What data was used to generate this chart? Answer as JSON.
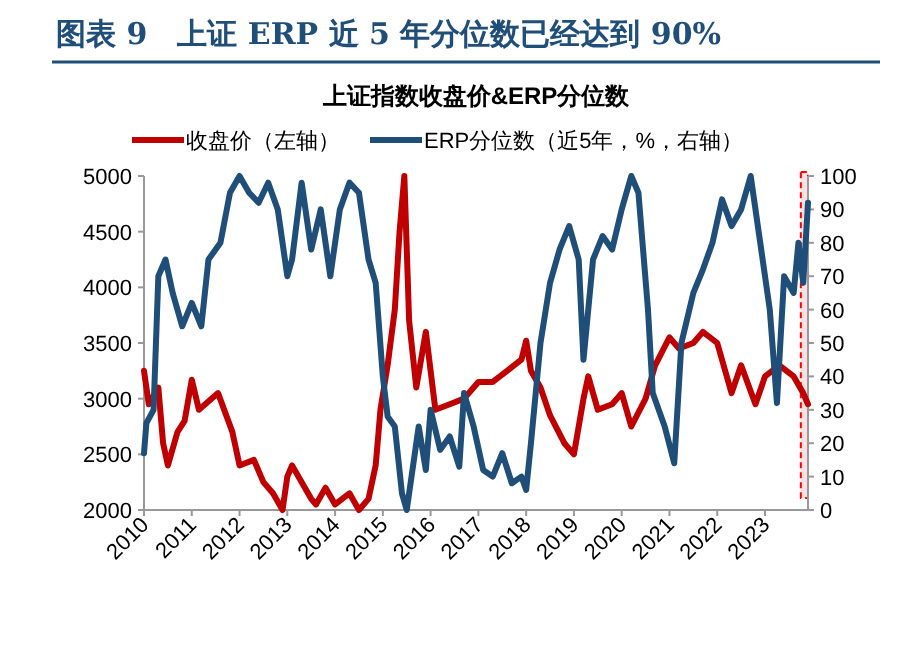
{
  "chart_data": {
    "type": "line",
    "title": "图表 9　上证 ERP 近 5 年分位数已经达到 90%",
    "subtitle": "上证指数收盘价&ERP分位数",
    "xlim": [
      2010,
      2023.9
    ],
    "xticks": [
      2010,
      2011,
      2012,
      2013,
      2014,
      2015,
      2016,
      2017,
      2018,
      2019,
      2020,
      2021,
      2022,
      2023
    ],
    "ylim": [
      2000,
      5000
    ],
    "yticks": [
      2000,
      2500,
      3000,
      3500,
      4000,
      4500,
      5000
    ],
    "y2lim": [
      0,
      100
    ],
    "y2ticks": [
      0,
      10,
      20,
      30,
      40,
      50,
      60,
      70,
      80,
      90,
      100
    ],
    "grid": false,
    "legend": "top",
    "marker": "none",
    "line_style": "solid",
    "bands": [
      {
        "axis": "x",
        "from": 2023.75,
        "to": 2023.9,
        "color": "#ff0000"
      }
    ],
    "series": [
      {
        "name": "收盘价（左轴）",
        "color": "#c00000",
        "x": [
          2010,
          2010.1,
          2010.3,
          2010.4,
          2010.5,
          2010.7,
          2010.85,
          2011,
          2011.15,
          2011.55,
          2011.85,
          2012,
          2012.3,
          2012.5,
          2012.7,
          2012.9,
          2013,
          2013.1,
          2013.5,
          2013.6,
          2013.8,
          2014,
          2014.3,
          2014.5,
          2014.7,
          2014.85,
          2014.95,
          2015.1,
          2015.25,
          2015.35,
          2015.45,
          2015.55,
          2015.7,
          2015.9,
          2016.1,
          2016.4,
          2016.7,
          2017,
          2017.3,
          2017.6,
          2017.9,
          2018,
          2018.1,
          2018.3,
          2018.5,
          2018.8,
          2019,
          2019.2,
          2019.3,
          2019.5,
          2019.8,
          2020,
          2020.2,
          2020.5,
          2020.7,
          2021,
          2021.2,
          2021.5,
          2021.7,
          2022,
          2022.3,
          2022.5,
          2022.8,
          2023,
          2023.3,
          2023.6,
          2023.8,
          2023.9
        ],
        "values": [
          3250,
          2950,
          3100,
          2600,
          2400,
          2700,
          2800,
          3170,
          2900,
          3050,
          2700,
          2400,
          2450,
          2250,
          2150,
          2000,
          2300,
          2400,
          2100,
          2050,
          2200,
          2050,
          2150,
          2000,
          2100,
          2400,
          2900,
          3300,
          3800,
          4500,
          5000,
          3700,
          3100,
          3600,
          2900,
          2950,
          3000,
          3150,
          3150,
          3250,
          3350,
          3520,
          3250,
          3100,
          2850,
          2600,
          2500,
          3000,
          3200,
          2900,
          2950,
          3050,
          2750,
          3000,
          3300,
          3550,
          3450,
          3500,
          3600,
          3500,
          3050,
          3300,
          2950,
          3200,
          3300,
          3200,
          3050,
          2950
        ]
      },
      {
        "name": "ERP分位数（近5年，%，右轴）",
        "color": "#1f4e79",
        "axis": "y2",
        "x": [
          2010,
          2010.05,
          2010.2,
          2010.3,
          2010.45,
          2010.6,
          2010.8,
          2011,
          2011.2,
          2011.35,
          2011.6,
          2011.8,
          2012,
          2012.2,
          2012.4,
          2012.6,
          2012.8,
          2013,
          2013.1,
          2013.3,
          2013.5,
          2013.7,
          2013.9,
          2014.1,
          2014.3,
          2014.5,
          2014.7,
          2014.85,
          2015,
          2015.1,
          2015.25,
          2015.4,
          2015.5,
          2015.6,
          2015.75,
          2015.9,
          2016,
          2016.2,
          2016.4,
          2016.6,
          2016.7,
          2016.9,
          2017.1,
          2017.3,
          2017.5,
          2017.7,
          2017.9,
          2018,
          2018.1,
          2018.3,
          2018.5,
          2018.7,
          2018.9,
          2019.1,
          2019.2,
          2019.4,
          2019.6,
          2019.8,
          2020,
          2020.2,
          2020.35,
          2020.55,
          2020.65,
          2020.9,
          2021.1,
          2021.25,
          2021.5,
          2021.7,
          2021.9,
          2022.1,
          2022.3,
          2022.5,
          2022.7,
          2022.9,
          2023.1,
          2023.25,
          2023.4,
          2023.6,
          2023.7,
          2023.8,
          2023.9
        ],
        "values": [
          17,
          26,
          30,
          70,
          75,
          65,
          55,
          62,
          55,
          75,
          80,
          95,
          100,
          95,
          92,
          98,
          90,
          70,
          75,
          98,
          78,
          90,
          70,
          90,
          98,
          95,
          75,
          68,
          40,
          28,
          25,
          5,
          0,
          10,
          25,
          12,
          30,
          18,
          22,
          13,
          35,
          25,
          12,
          10,
          17,
          8,
          10,
          6,
          20,
          50,
          68,
          78,
          85,
          75,
          45,
          75,
          82,
          78,
          90,
          100,
          95,
          60,
          35,
          25,
          14,
          50,
          65,
          72,
          80,
          93,
          85,
          90,
          100,
          80,
          60,
          32,
          70,
          65,
          80,
          68,
          92
        ]
      }
    ]
  }
}
